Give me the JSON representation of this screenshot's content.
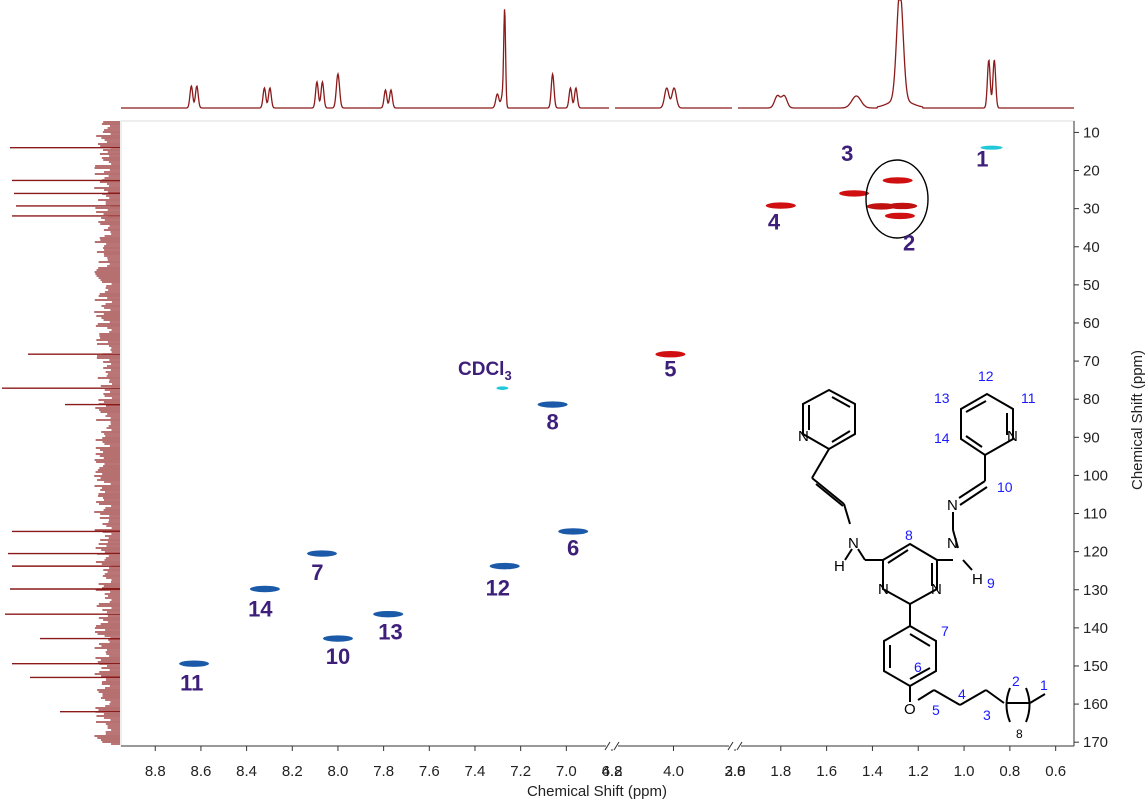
{
  "chart_data": {
    "type": "heatmap",
    "title": "",
    "xlabel": "Chemical Shift (ppm)",
    "ylabel": "Chemical Shift (ppm)",
    "x_axis": {
      "reversed": true,
      "breaks": [
        [
          6.8,
          4.2
        ],
        [
          3.8,
          2.0
        ]
      ],
      "segments": [
        [
          8.95,
          6.8
        ],
        [
          4.2,
          3.8
        ],
        [
          2.0,
          0.52
        ]
      ],
      "ticks": [
        8.8,
        8.6,
        8.4,
        8.2,
        8.0,
        7.8,
        7.6,
        7.4,
        7.2,
        7.0,
        6.8,
        4.2,
        4.0,
        3.8,
        2.0,
        1.8,
        1.6,
        1.4,
        1.2,
        1.0,
        0.8,
        0.6
      ],
      "tick_labels": [
        "8.8",
        "8.6",
        "8.4",
        "8.2",
        "8.0",
        "7.8",
        "7.6",
        "7.4",
        "7.2",
        "7.0",
        "6.8",
        "4.2",
        "4.0",
        "3.8",
        "2.0",
        "1.8",
        "1.6",
        "1.4",
        "1.2",
        "1.0",
        "0.8",
        "0.6"
      ]
    },
    "y_axis": {
      "reversed": true,
      "ylim": [
        7,
        171
      ],
      "ticks": [
        10,
        20,
        30,
        40,
        50,
        60,
        70,
        80,
        90,
        100,
        110,
        120,
        130,
        140,
        150,
        160,
        170
      ],
      "tick_labels": [
        "10",
        "20",
        "30",
        "40",
        "50",
        "60",
        "70",
        "80",
        "90",
        "100",
        "110",
        "120",
        "130",
        "140",
        "150",
        "160",
        "170"
      ]
    },
    "cross_peaks": [
      {
        "h": 0.88,
        "c": 14.0,
        "phase": "CH/CH3",
        "color": "#20c8d8"
      },
      {
        "h": 1.29,
        "c": 22.6,
        "phase": "CH2",
        "color": "#d01010"
      },
      {
        "h": 1.27,
        "c": 29.3,
        "phase": "CH2",
        "color": "#c01010"
      },
      {
        "h": 1.36,
        "c": 29.4,
        "phase": "CH2",
        "color": "#c01010"
      },
      {
        "h": 1.28,
        "c": 31.9,
        "phase": "CH2",
        "color": "#d01010"
      },
      {
        "h": 1.48,
        "c": 26.0,
        "phase": "CH2",
        "color": "#d01010"
      },
      {
        "h": 1.8,
        "c": 29.2,
        "phase": "CH2",
        "color": "#d01010"
      },
      {
        "h": 4.01,
        "c": 68.2,
        "phase": "CH2",
        "color": "#d01010"
      },
      {
        "h": 7.06,
        "c": 81.4,
        "phase": "CH",
        "color": "#1a5aa8"
      },
      {
        "h": 6.97,
        "c": 114.7,
        "phase": "CH",
        "color": "#1a5aa8"
      },
      {
        "h": 8.07,
        "c": 120.5,
        "phase": "CH",
        "color": "#1a5aa8"
      },
      {
        "h": 7.27,
        "c": 123.8,
        "phase": "CH",
        "color": "#1a5aa8"
      },
      {
        "h": 8.32,
        "c": 129.8,
        "phase": "CH",
        "color": "#1a5aa8"
      },
      {
        "h": 7.78,
        "c": 136.4,
        "phase": "CH",
        "color": "#1a5aa8"
      },
      {
        "h": 8.0,
        "c": 142.8,
        "phase": "CH",
        "color": "#1a5aa8"
      },
      {
        "h": 8.63,
        "c": 149.4,
        "phase": "CH",
        "color": "#1a5aa8"
      },
      {
        "h": 7.28,
        "c": 77.1,
        "phase": "solvent",
        "color": "#20c8d8"
      }
    ],
    "labels": [
      {
        "text": "1",
        "h": 0.92,
        "c": 19.0
      },
      {
        "text": "2",
        "h": 1.24,
        "c": 41.0
      },
      {
        "text": "3",
        "h": 1.51,
        "c": 17.5
      },
      {
        "text": "4",
        "h": 1.83,
        "c": 35.5
      },
      {
        "text": "5",
        "h": 4.01,
        "c": 74.0
      },
      {
        "text": "6",
        "h": 6.97,
        "c": 121.0
      },
      {
        "text": "7",
        "h": 8.09,
        "c": 127.5
      },
      {
        "text": "8",
        "h": 7.06,
        "c": 88.0
      },
      {
        "text": "10",
        "h": 8.0,
        "c": 149.5
      },
      {
        "text": "11",
        "h": 8.64,
        "c": 156.5
      },
      {
        "text": "12",
        "h": 7.3,
        "c": 131.5
      },
      {
        "text": "13",
        "h": 7.77,
        "c": 143.0
      },
      {
        "text": "14",
        "h": 8.34,
        "c": 137.0
      }
    ],
    "solvent_label": {
      "main": "CDCl",
      "sub": "3"
    },
    "structure_numbers": [
      "1",
      "2",
      "3",
      "4",
      "5",
      "6",
      "7",
      "8",
      "9",
      "10",
      "11",
      "12",
      "13",
      "14"
    ],
    "structure_atoms": {
      "N": "N",
      "H": "H",
      "O": "O",
      "repeat": "8"
    },
    "colors": {
      "projection": "#8b1a1a",
      "positive_phase": "#1a5aa8",
      "negative_phase": "#d01010",
      "light_phase": "#20c8d8",
      "label": "#3d1f7a",
      "structure_number": "#1a1aff"
    }
  }
}
